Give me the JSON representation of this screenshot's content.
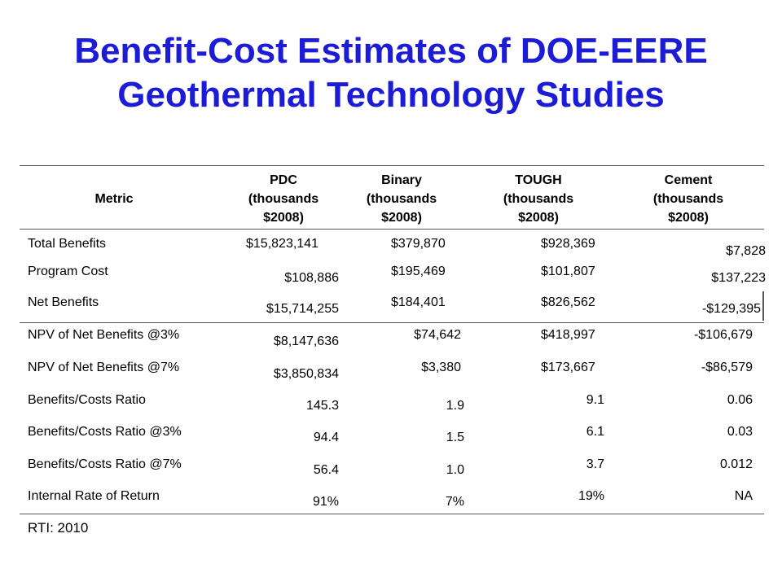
{
  "title_line1": "Benefit-Cost Estimates of DOE-EERE",
  "title_line2": "Geothermal Technology Studies",
  "headers": {
    "metric": "Metric",
    "pdc": "PDC\n(thousands\n$2008)",
    "binary": "Binary\n(thousands\n$2008)",
    "tough": "TOUGH\n(thousands\n$2008)",
    "cement": "Cement\n(thousands\n$2008)"
  },
  "rows": [
    {
      "metric": "Total Benefits",
      "pdc": "$15,823,141",
      "binary": "$379,870",
      "tough": "$928,369",
      "cement": "$7,828"
    },
    {
      "metric": "Program Cost",
      "pdc": "$108,886",
      "binary": "$195,469",
      "tough": "$101,807",
      "cement": "$137,223"
    },
    {
      "metric": "Net Benefits",
      "pdc": "$15,714,255",
      "binary": "$184,401",
      "tough": "$826,562",
      "cement": "-$129,395"
    },
    {
      "metric": "NPV of Net Benefits @3%",
      "pdc": "$8,147,636",
      "binary": "$74,642",
      "tough": "$418,997",
      "cement": "-$106,679"
    },
    {
      "metric": "NPV of Net Benefits @7%",
      "pdc": "$3,850,834",
      "binary": "$3,380",
      "tough": "$173,667",
      "cement": "-$86,579"
    },
    {
      "metric": "Benefits/Costs Ratio",
      "pdc": "145.3",
      "binary": "1.9",
      "tough": "9.1",
      "cement": "0.06"
    },
    {
      "metric": "Benefits/Costs Ratio @3%",
      "pdc": "94.4",
      "binary": "1.5",
      "tough": "6.1",
      "cement": "0.03"
    },
    {
      "metric": "Benefits/Costs Ratio @7%",
      "pdc": "56.4",
      "binary": "1.0",
      "tough": "3.7",
      "cement": "0.012"
    },
    {
      "metric": "Internal Rate of Return",
      "pdc": "91%",
      "binary": "7%",
      "tough": "19%",
      "cement": "NA"
    }
  ],
  "source": "RTI: 2010"
}
